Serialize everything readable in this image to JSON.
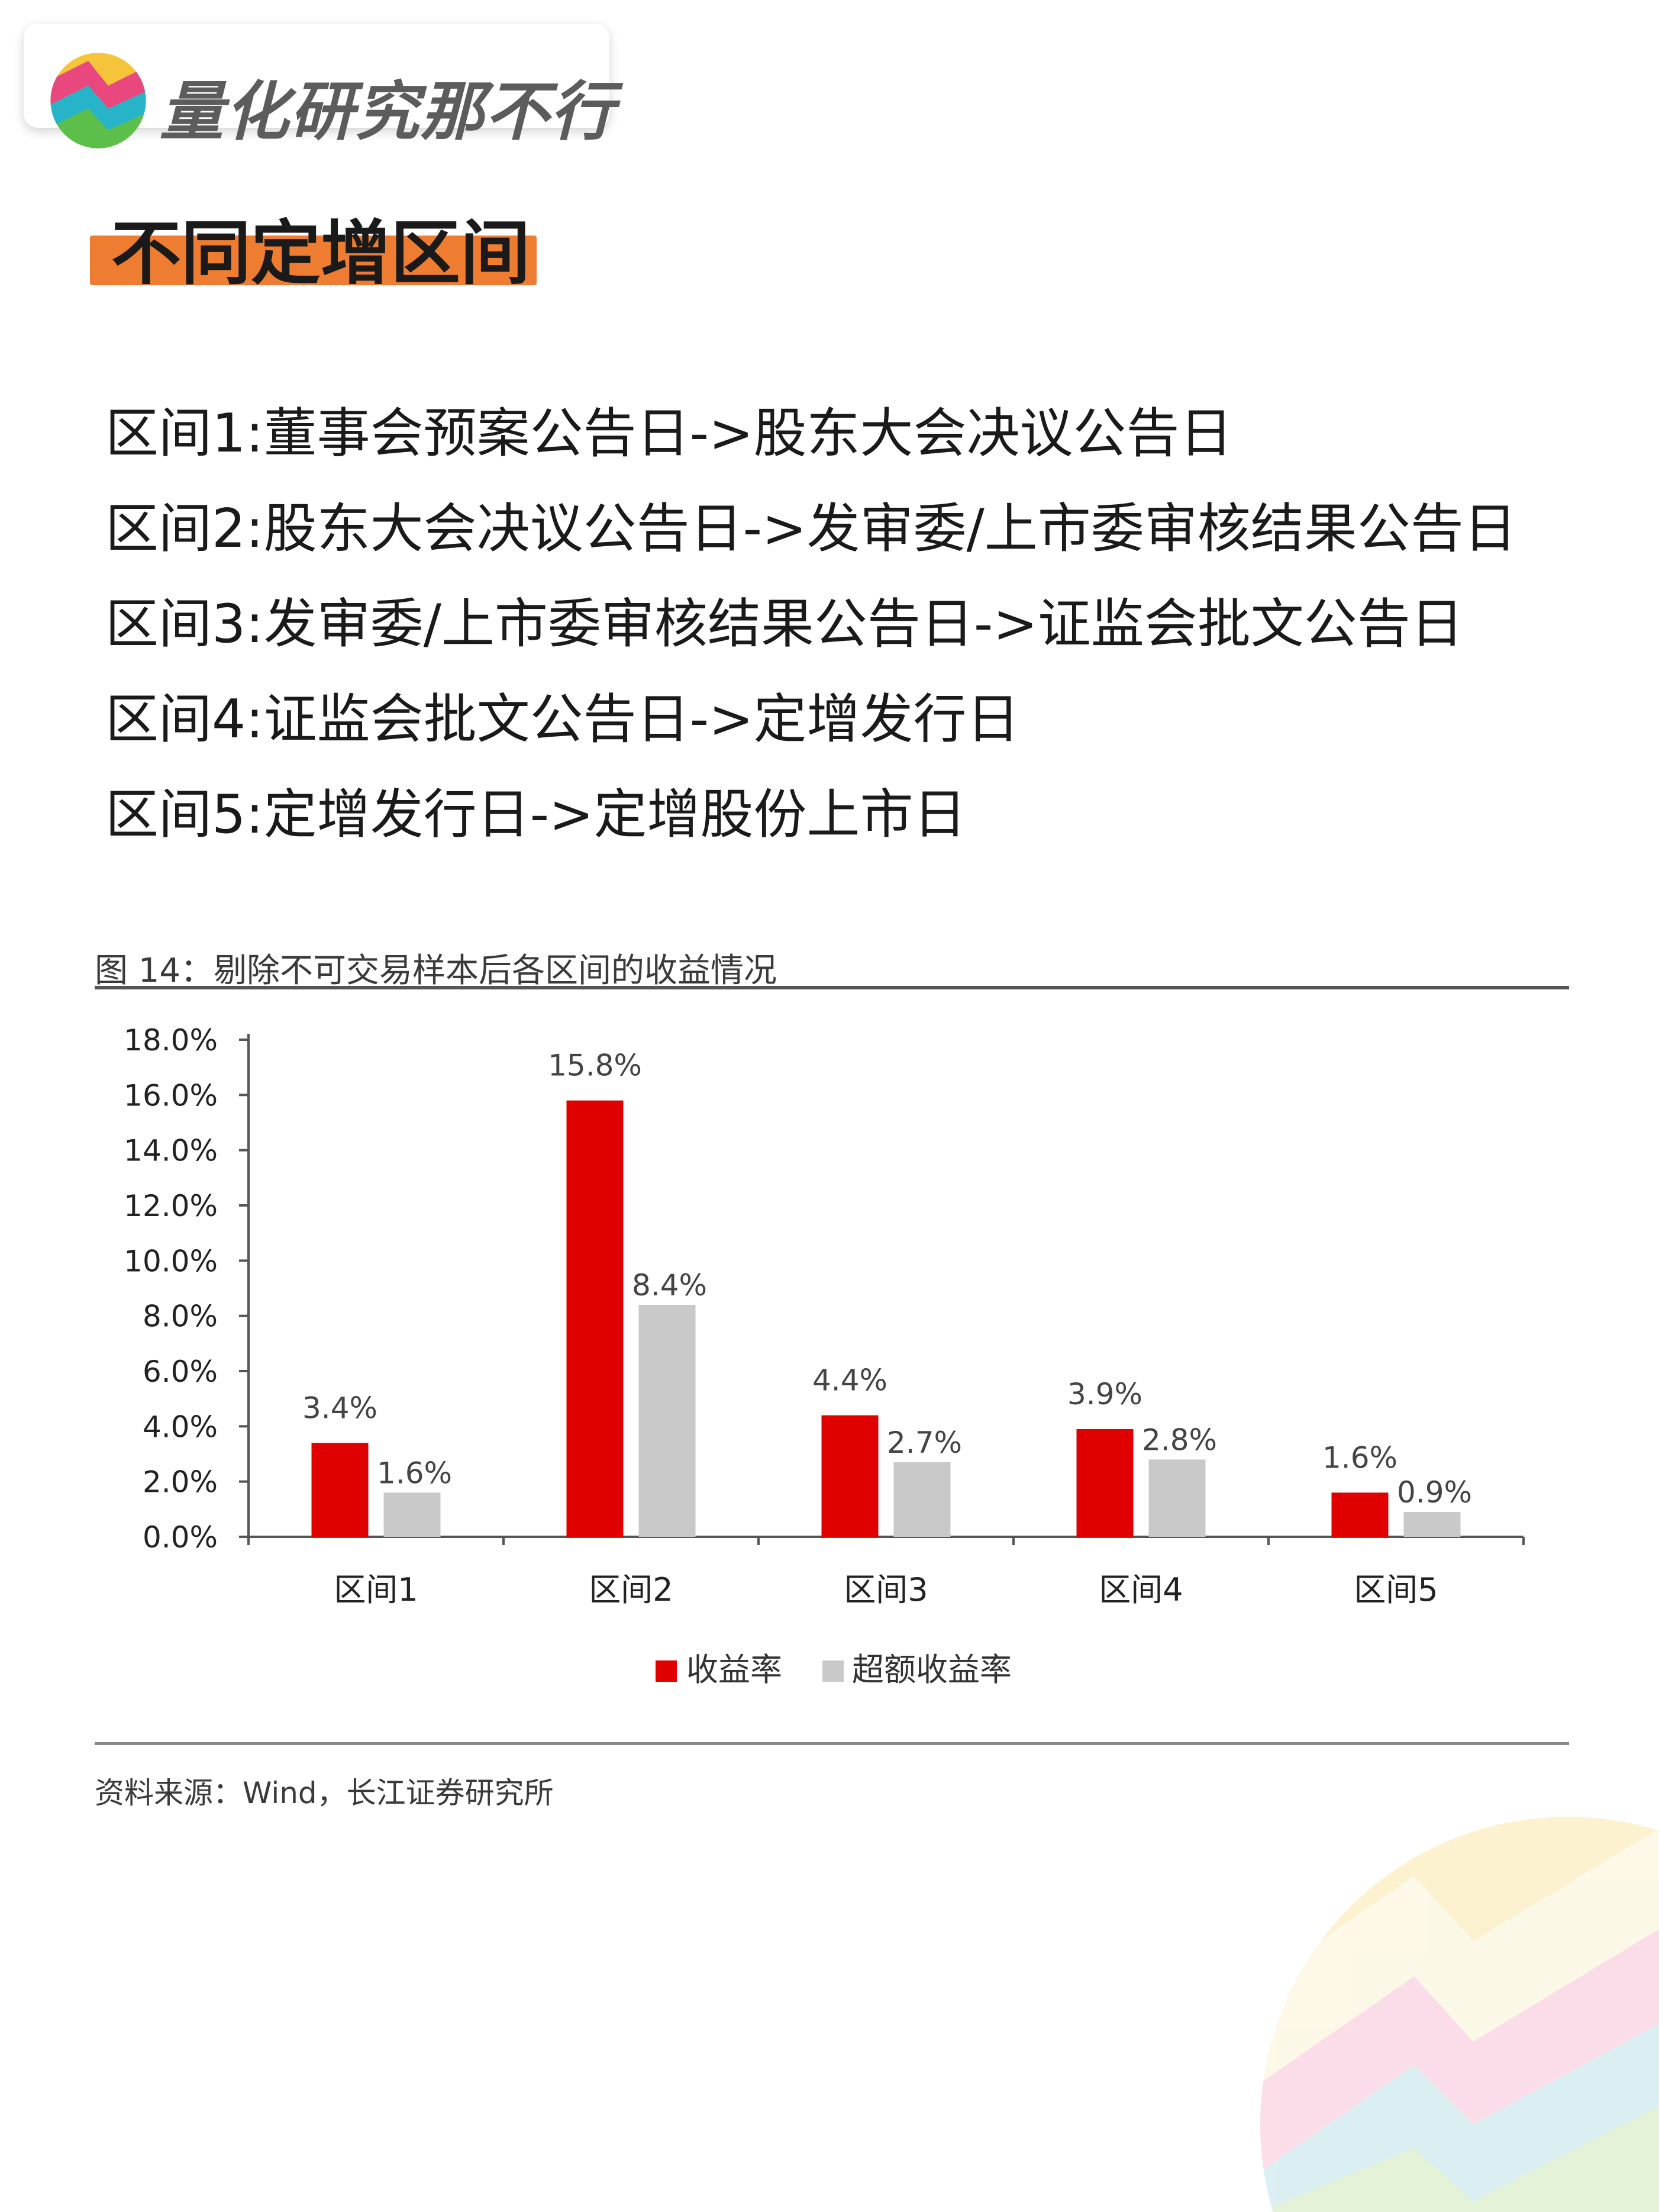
{
  "brand": {
    "name": "量化研究那不行"
  },
  "section": {
    "title": "不同定增区间"
  },
  "intervals": [
    "区间1:董事会预案公告日->股东大会决议公告日",
    "区间2:股东大会决议公告日->发审委/上市委审核结果公告日",
    "区间3:发审委/上市委审核结果公告日->证监会批文公告日",
    "区间4:证监会批文公告日->定增发行日",
    "区间5:定增发行日->定增股份上市日"
  ],
  "figure": {
    "caption": "图 14：剔除不可交易样本后各区间的收益情况",
    "source": "资料来源：Wind，长江证券研究所"
  },
  "chart_data": {
    "type": "bar",
    "categories": [
      "区间1",
      "区间2",
      "区间3",
      "区间4",
      "区间5"
    ],
    "series": [
      {
        "name": "收益率",
        "values": [
          3.4,
          15.8,
          4.4,
          3.9,
          1.6
        ],
        "labels": [
          "3.4%",
          "15.8%",
          "4.4%",
          "3.9%",
          "1.6%"
        ],
        "color": "#e00000"
      },
      {
        "name": "超额收益率",
        "values": [
          1.6,
          8.4,
          2.7,
          2.8,
          0.9
        ],
        "labels": [
          "1.6%",
          "8.4%",
          "2.7%",
          "2.8%",
          "0.9%"
        ],
        "color": "#c9c9c9"
      }
    ],
    "ylim": [
      0,
      18
    ],
    "yticks": [
      0,
      2,
      4,
      6,
      8,
      10,
      12,
      14,
      16,
      18
    ],
    "ytick_labels": [
      "0.0%",
      "2.0%",
      "4.0%",
      "6.0%",
      "8.0%",
      "10.0%",
      "12.0%",
      "14.0%",
      "16.0%",
      "18.0%"
    ],
    "legend_position": "bottom-center",
    "grid": false
  },
  "colors": {
    "accent_orange": "#ee7d31",
    "bar_red": "#e00000",
    "bar_gray": "#c9c9c9"
  }
}
